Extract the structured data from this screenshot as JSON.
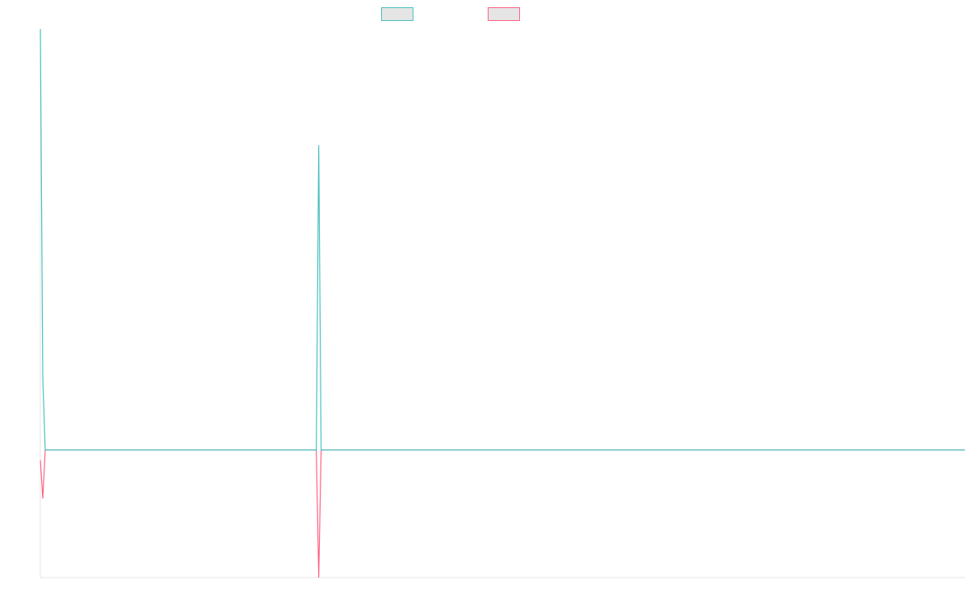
{
  "chart_data": {
    "type": "line",
    "x": [
      0,
      1,
      2,
      114,
      115,
      116,
      382
    ],
    "series": [
      {
        "color": "#ff6384",
        "values": [
          -0.08,
          -0.38,
          0,
          0,
          -1,
          0,
          0
        ]
      },
      {
        "color": "#4bc0c0",
        "values": [
          3.3,
          0.56,
          0,
          0,
          2.39,
          0,
          0
        ]
      }
    ],
    "xlim": [
      0,
      382
    ],
    "ylim": [
      -1,
      3.3
    ],
    "grid": false,
    "legend": "top"
  }
}
